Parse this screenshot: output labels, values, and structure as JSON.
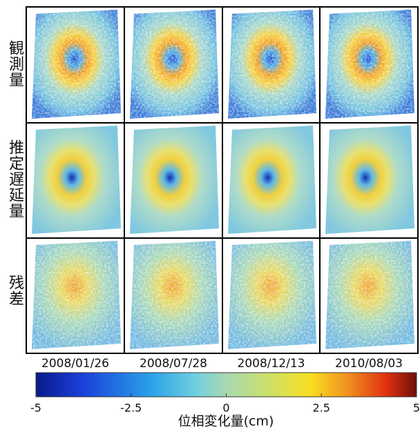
{
  "chart_data": {
    "type": "colorbar-grid",
    "row_labels": [
      "観測量",
      "推定遅延量",
      "残差"
    ],
    "column_labels": [
      "2008/01/26",
      "2008/07/28",
      "2008/12/13",
      "2010/08/03"
    ],
    "colorbar": {
      "label": "位相変化量(cm)",
      "lim": [
        -5,
        5
      ],
      "ticks": [
        -5,
        -2.5,
        0,
        2.5,
        5
      ]
    }
  }
}
